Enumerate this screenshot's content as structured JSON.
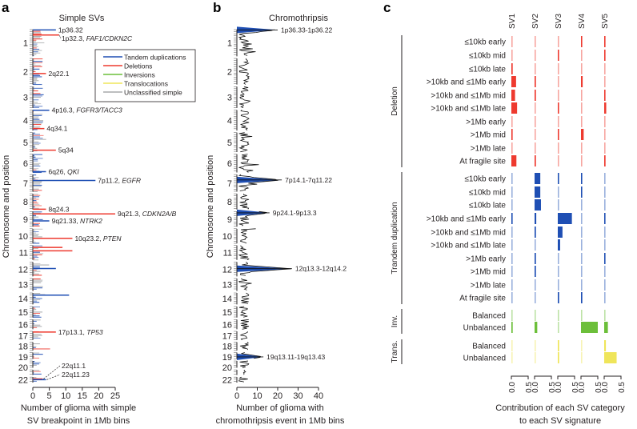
{
  "panels": {
    "a": "a",
    "b": "b",
    "c": "c"
  },
  "chart_data": [
    {
      "type": "bar",
      "orientation": "horizontal",
      "title": "Simple SVs",
      "xlabel": [
        "Number of glioma with simple",
        "SV breakpoint in 1Mb bins"
      ],
      "ylabel": "Chromosome and position",
      "xlim": [
        0,
        25
      ],
      "xticks": [
        "0",
        "5",
        "10",
        "15",
        "20",
        "25"
      ],
      "chromosomes": [
        "1",
        "2",
        "3",
        "4",
        "5",
        "6",
        "7",
        "8",
        "9",
        "10",
        "11",
        "12",
        "13",
        "14",
        "15",
        "16",
        "17",
        "18",
        "19",
        "20",
        "",
        "22"
      ],
      "legend": {
        "placement": "top-right",
        "entries": [
          {
            "label": "Tandem duplications",
            "color": "#1f4fb4"
          },
          {
            "label": "Deletions",
            "color": "#ee3a2f"
          },
          {
            "label": "Inversions",
            "color": "#6cbf3a"
          },
          {
            "label": "Translocations",
            "color": "#efe55a"
          },
          {
            "label": "Unclassified simple",
            "color": "#a7a9ac"
          }
        ]
      },
      "peaks": [
        {
          "band": "1p36.32",
          "gene": "",
          "chrom": 1,
          "mb": 3,
          "value": 7,
          "type": "Tandem duplications"
        },
        {
          "band": "1p32.3, ",
          "gene": "FAF1/CDKN2C",
          "chrom": 1,
          "mb": 50,
          "value": 8,
          "type": "Deletions"
        },
        {
          "band": "2q22.1",
          "gene": "",
          "chrom": 2,
          "mb": 140,
          "value": 4,
          "type": "Deletions"
        },
        {
          "band": "4p16.3, ",
          "gene": "FGFR3/TACC3",
          "chrom": 4,
          "mb": 2,
          "value": 5,
          "type": "Tandem duplications"
        },
        {
          "band": "4q34.1",
          "gene": "",
          "chrom": 4,
          "mb": 173,
          "value": 3.5,
          "type": "Deletions"
        },
        {
          "band": "5q34",
          "gene": "",
          "chrom": 5,
          "mb": 163,
          "value": 7,
          "type": "Deletions"
        },
        {
          "band": "6q26, ",
          "gene": "QKI",
          "chrom": 6,
          "mb": 163,
          "value": 4,
          "type": "Tandem duplications"
        },
        {
          "band": "7p11.2, ",
          "gene": "EGFR",
          "chrom": 7,
          "mb": 55,
          "value": 19,
          "type": "Tandem duplications"
        },
        {
          "band": "8q24.3",
          "gene": "",
          "chrom": 8,
          "mb": 144,
          "value": 4,
          "type": "Deletions"
        },
        {
          "band": "9q21.3, ",
          "gene": "CDKN2A/B",
          "chrom": 9,
          "mb": 22,
          "value": 25,
          "type": "Deletions"
        },
        {
          "band": "9q21.33, ",
          "gene": "NTRK2",
          "chrom": 9,
          "mb": 87,
          "value": 5,
          "type": "Tandem duplications"
        },
        {
          "band": "10q23.2, ",
          "gene": "PTEN",
          "chrom": 10,
          "mb": 89,
          "value": 12,
          "type": "Deletions"
        },
        {
          "band": "17p13.1, ",
          "gene": "TP53",
          "chrom": 17,
          "mb": 7,
          "value": 7,
          "type": "Deletions"
        },
        {
          "band": "22q11.1",
          "gene": "",
          "chrom": 22,
          "mb": 17,
          "value": 3,
          "type": "Deletions"
        },
        {
          "band": "22q11.23",
          "gene": "",
          "chrom": 22,
          "mb": 24,
          "value": 4,
          "type": "Tandem duplications"
        },
        {
          "band": "",
          "gene": "",
          "chrom": 11,
          "mb": 18,
          "value": 9,
          "type": "Deletions"
        },
        {
          "band": "",
          "gene": "",
          "chrom": 11,
          "mb": 50,
          "value": 12,
          "type": "Deletions"
        },
        {
          "band": "",
          "gene": "",
          "chrom": 12,
          "mb": 60,
          "value": 7,
          "type": "Tandem duplications"
        },
        {
          "band": "",
          "gene": "",
          "chrom": 14,
          "mb": 20,
          "value": 11,
          "type": "Tandem duplications"
        }
      ]
    },
    {
      "type": "line",
      "orientation": "horizontal",
      "title": "Chromothripsis",
      "xlabel": [
        "Number of glioma with",
        "chromothripsis event in 1Mb bins"
      ],
      "ylabel": "Chromosome and position",
      "xlim": [
        0,
        40
      ],
      "xticks": [
        "0",
        "10",
        "20",
        "30",
        "40"
      ],
      "chromosomes": [
        "1",
        "2",
        "3",
        "4",
        "5",
        "6",
        "7",
        "8",
        "9",
        "10",
        "11",
        "12",
        "13",
        "14",
        "15",
        "16",
        "17",
        "18",
        "19",
        "20",
        "",
        "22"
      ],
      "peaks": [
        {
          "band": "1p36.33-1p36.22",
          "chrom": 1,
          "mb": 3,
          "value": 20
        },
        {
          "band": "7p14.1-7q11.22",
          "chrom": 7,
          "mb": 50,
          "value": 22
        },
        {
          "band": "9p24.1-9p13.3",
          "chrom": 9,
          "mb": 12,
          "value": 16
        },
        {
          "band": "12q13.3-12q14.2",
          "chrom": 12,
          "mb": 62,
          "value": 27
        },
        {
          "band": "19q13.11-19q13.43",
          "chrom": 19,
          "mb": 40,
          "value": 13
        }
      ]
    },
    {
      "type": "bar",
      "orientation": "horizontal",
      "title": "",
      "xlabel": [
        "Contribution of each SV category",
        "to each SV signature"
      ],
      "signatures": [
        "SV1",
        "SV2",
        "SV3",
        "SV4",
        "SV5"
      ],
      "xticks": [
        "0.0",
        "0.5"
      ],
      "xlim": [
        0,
        0.5
      ],
      "groups": [
        {
          "name": "Deletion",
          "color": "#ee3a2f",
          "categories": [
            "≤10kb early",
            "≤10kb mid",
            "≤10kb late",
            ">10kb and ≤1Mb early",
            ">10kb and ≤1Mb mid",
            ">10kb and ≤1Mb late",
            ">1Mb early",
            ">1Mb mid",
            ">1Mb late",
            "At fragile site"
          ],
          "values": [
            [
              0.02,
              0.02,
              0.04,
              0.14,
              0.11,
              0.17,
              0.01,
              0.03,
              0.01,
              0.15
            ],
            [
              0.01,
              0.01,
              0.01,
              0.04,
              0.04,
              0.01,
              0.01,
              0.01,
              0.01,
              0.04
            ],
            [
              0.01,
              0.03,
              0.01,
              0.01,
              0.01,
              0.03,
              0.01,
              0.03,
              0.02,
              0.01
            ],
            [
              0.03,
              0.01,
              0.01,
              0.05,
              0.01,
              0.01,
              0.01,
              0.08,
              0.01,
              0.01
            ],
            [
              0.03,
              0.03,
              0.01,
              0.01,
              0.03,
              0.06,
              0.01,
              0.01,
              0.01,
              0.04
            ]
          ]
        },
        {
          "name": "Trandem duplication",
          "color": "#1f4fb4",
          "categories": [
            "≤10kb early",
            "≤10kb mid",
            "≤10kb late",
            ">10kb and ≤1Mb early",
            ">10kb and ≤1Mb mid",
            ">10kb and ≤1Mb late",
            ">1Mb early",
            ">1Mb mid",
            ">1Mb late",
            "At fragile site"
          ],
          "values": [
            [
              0.02,
              0.02,
              0.01,
              0.03,
              0.02,
              0.02,
              0.01,
              0.01,
              0.01,
              0.01
            ],
            [
              0.17,
              0.17,
              0.19,
              0.05,
              0.04,
              0.02,
              0.04,
              0.04,
              0.01,
              0.02
            ],
            [
              0.03,
              0.01,
              0.01,
              0.42,
              0.14,
              0.07,
              0.01,
              0.01,
              0.01,
              0.04
            ],
            [
              0.03,
              0.03,
              0.01,
              0.02,
              0.01,
              0.02,
              0.01,
              0.01,
              0.01,
              0.04
            ],
            [
              0.02,
              0.01,
              0.01,
              0.03,
              0.02,
              0.01,
              0.03,
              0.02,
              0.01,
              0.01
            ]
          ]
        },
        {
          "name": "Inv.",
          "color": "#6cbf3a",
          "categories": [
            "Balanced",
            "Unbalanced"
          ],
          "values": [
            [
              0.02,
              0.04
            ],
            [
              0.01,
              0.08
            ],
            [
              0.01,
              0.01
            ],
            [
              0.01,
              0.5
            ],
            [
              0.01,
              0.11
            ]
          ]
        },
        {
          "name": "Trans.",
          "color": "#efe55a",
          "categories": [
            "Balanced",
            "Unbalanced"
          ],
          "values": [
            [
              0.01,
              0.01
            ],
            [
              0.01,
              0.01
            ],
            [
              0.04,
              0.04
            ],
            [
              0.02,
              0.02
            ],
            [
              0.05,
              0.37
            ]
          ]
        }
      ]
    }
  ]
}
